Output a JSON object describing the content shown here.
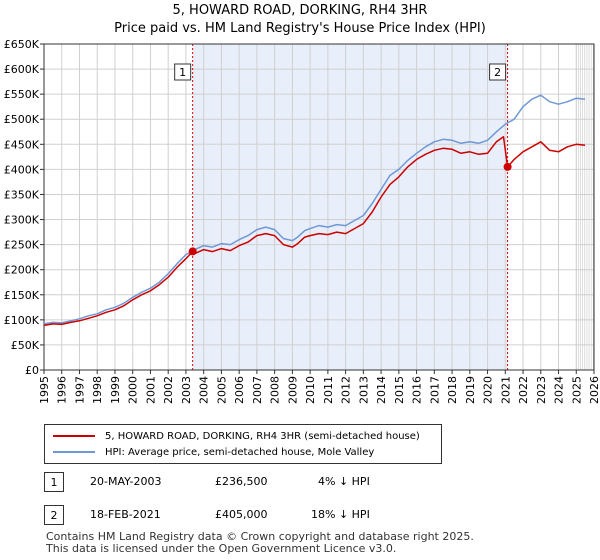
{
  "title_line1": "5, HOWARD ROAD, DORKING, RH4 3HR",
  "title_line2": "Price paid vs. HM Land Registry's House Price Index (HPI)",
  "chart_data": {
    "type": "line",
    "ylim": [
      0,
      650000
    ],
    "xlim": [
      1995,
      2026
    ],
    "ytick_values": [
      0,
      50000,
      100000,
      150000,
      200000,
      250000,
      300000,
      350000,
      400000,
      450000,
      500000,
      550000,
      600000,
      650000
    ],
    "ytick_labels": [
      "£0",
      "£50K",
      "£100K",
      "£150K",
      "£200K",
      "£250K",
      "£300K",
      "£350K",
      "£400K",
      "£450K",
      "£500K",
      "£550K",
      "£600K",
      "£650K"
    ],
    "xtick_values": [
      1995,
      1996,
      1997,
      1998,
      1999,
      2000,
      2001,
      2002,
      2003,
      2004,
      2005,
      2006,
      2007,
      2008,
      2009,
      2010,
      2011,
      2012,
      2013,
      2014,
      2015,
      2016,
      2017,
      2018,
      2019,
      2020,
      2021,
      2022,
      2023,
      2024,
      2025,
      2026
    ],
    "xtick_labels": [
      "1995",
      "1996",
      "1997",
      "1998",
      "1999",
      "2000",
      "2001",
      "2002",
      "2003",
      "2004",
      "2005",
      "2006",
      "2007",
      "2008",
      "2009",
      "2010",
      "2011",
      "2012",
      "2013",
      "2014",
      "2015",
      "2016",
      "2017",
      "2018",
      "2019",
      "2020",
      "2021",
      "2022",
      "2023",
      "2024",
      "2025",
      "2026"
    ],
    "grid": true,
    "series": [
      {
        "name": "5, HOWARD ROAD, DORKING, RH4 3HR (semi-detached house)",
        "color": "#cc0000",
        "x": [
          1995.0,
          1995.5,
          1996.0,
          1996.5,
          1997.0,
          1997.5,
          1998.0,
          1998.5,
          1999.0,
          1999.5,
          2000.0,
          2000.5,
          2001.0,
          2001.5,
          2002.0,
          2002.5,
          2003.0,
          2003.38,
          2003.5,
          2004.0,
          2004.5,
          2005.0,
          2005.5,
          2006.0,
          2006.5,
          2007.0,
          2007.5,
          2008.0,
          2008.5,
          2009.0,
          2009.3,
          2009.7,
          2010.0,
          2010.5,
          2011.0,
          2011.5,
          2012.0,
          2012.5,
          2013.0,
          2013.5,
          2014.0,
          2014.5,
          2015.0,
          2015.5,
          2016.0,
          2016.5,
          2017.0,
          2017.5,
          2018.0,
          2018.5,
          2019.0,
          2019.5,
          2020.0,
          2020.5,
          2020.9,
          2021.13,
          2021.5,
          2022.0,
          2022.5,
          2023.0,
          2023.5,
          2024.0,
          2024.5,
          2025.0,
          2025.5
        ],
        "y": [
          89000,
          92000,
          91000,
          95000,
          98000,
          103000,
          108000,
          115000,
          120000,
          128000,
          140000,
          150000,
          158000,
          170000,
          185000,
          205000,
          222000,
          236500,
          232000,
          240000,
          236000,
          242000,
          238000,
          248000,
          255000,
          268000,
          272000,
          268000,
          250000,
          245000,
          252000,
          265000,
          268000,
          272000,
          270000,
          275000,
          272000,
          282000,
          292000,
          315000,
          345000,
          370000,
          385000,
          405000,
          420000,
          430000,
          438000,
          442000,
          440000,
          432000,
          435000,
          430000,
          432000,
          455000,
          465000,
          405000,
          420000,
          435000,
          445000,
          455000,
          438000,
          435000,
          445000,
          450000,
          448000
        ]
      },
      {
        "name": "HPI: Average price, semi-detached house, Mole Valley",
        "color": "#6f98d6",
        "x": [
          1995.0,
          1995.5,
          1996.0,
          1996.5,
          1997.0,
          1997.5,
          1998.0,
          1998.5,
          1999.0,
          1999.5,
          2000.0,
          2000.5,
          2001.0,
          2001.5,
          2002.0,
          2002.5,
          2003.0,
          2003.5,
          2004.0,
          2004.5,
          2005.0,
          2005.5,
          2006.0,
          2006.5,
          2007.0,
          2007.5,
          2008.0,
          2008.5,
          2009.0,
          2009.3,
          2009.7,
          2010.0,
          2010.5,
          2011.0,
          2011.5,
          2012.0,
          2012.5,
          2013.0,
          2013.5,
          2014.0,
          2014.5,
          2015.0,
          2015.5,
          2016.0,
          2016.5,
          2017.0,
          2017.5,
          2018.0,
          2018.5,
          2019.0,
          2019.5,
          2020.0,
          2020.5,
          2021.0,
          2021.5,
          2022.0,
          2022.5,
          2023.0,
          2023.5,
          2024.0,
          2024.5,
          2025.0,
          2025.5
        ],
        "y": [
          92000,
          95000,
          94000,
          98000,
          102000,
          108000,
          112000,
          120000,
          125000,
          133000,
          145000,
          155000,
          163000,
          175000,
          192000,
          212000,
          230000,
          240000,
          248000,
          245000,
          252000,
          250000,
          260000,
          268000,
          280000,
          285000,
          280000,
          262000,
          258000,
          265000,
          278000,
          282000,
          288000,
          285000,
          290000,
          288000,
          298000,
          308000,
          332000,
          360000,
          388000,
          400000,
          418000,
          432000,
          445000,
          455000,
          460000,
          458000,
          452000,
          455000,
          452000,
          458000,
          475000,
          490000,
          500000,
          525000,
          540000,
          548000,
          535000,
          530000,
          535000,
          542000,
          540000
        ]
      }
    ],
    "vlines": [
      {
        "x": 2003.38,
        "label": "1"
      },
      {
        "x": 2021.13,
        "label": "2"
      }
    ],
    "points": [
      {
        "x": 2003.38,
        "y": 236500
      },
      {
        "x": 2021.13,
        "y": 405000
      }
    ],
    "colors": {
      "shade": "#e8eefa",
      "vline": "#cc0000",
      "grid": "#d0d0d0",
      "axis": "#333333"
    }
  },
  "legend": {
    "property_label": "5, HOWARD ROAD, DORKING, RH4 3HR (semi-detached house)",
    "hpi_label": "HPI: Average price, semi-detached house, Mole Valley"
  },
  "transactions": [
    {
      "num": "1",
      "date": "20-MAY-2003",
      "price": "£236,500",
      "hpi": "4% ↓ HPI"
    },
    {
      "num": "2",
      "date": "18-FEB-2021",
      "price": "£405,000",
      "hpi": "18% ↓ HPI"
    }
  ],
  "footer": {
    "line1": "Contains HM Land Registry data © Crown copyright and database right 2025.",
    "line2": "This data is licensed under the Open Government Licence v3.0."
  }
}
